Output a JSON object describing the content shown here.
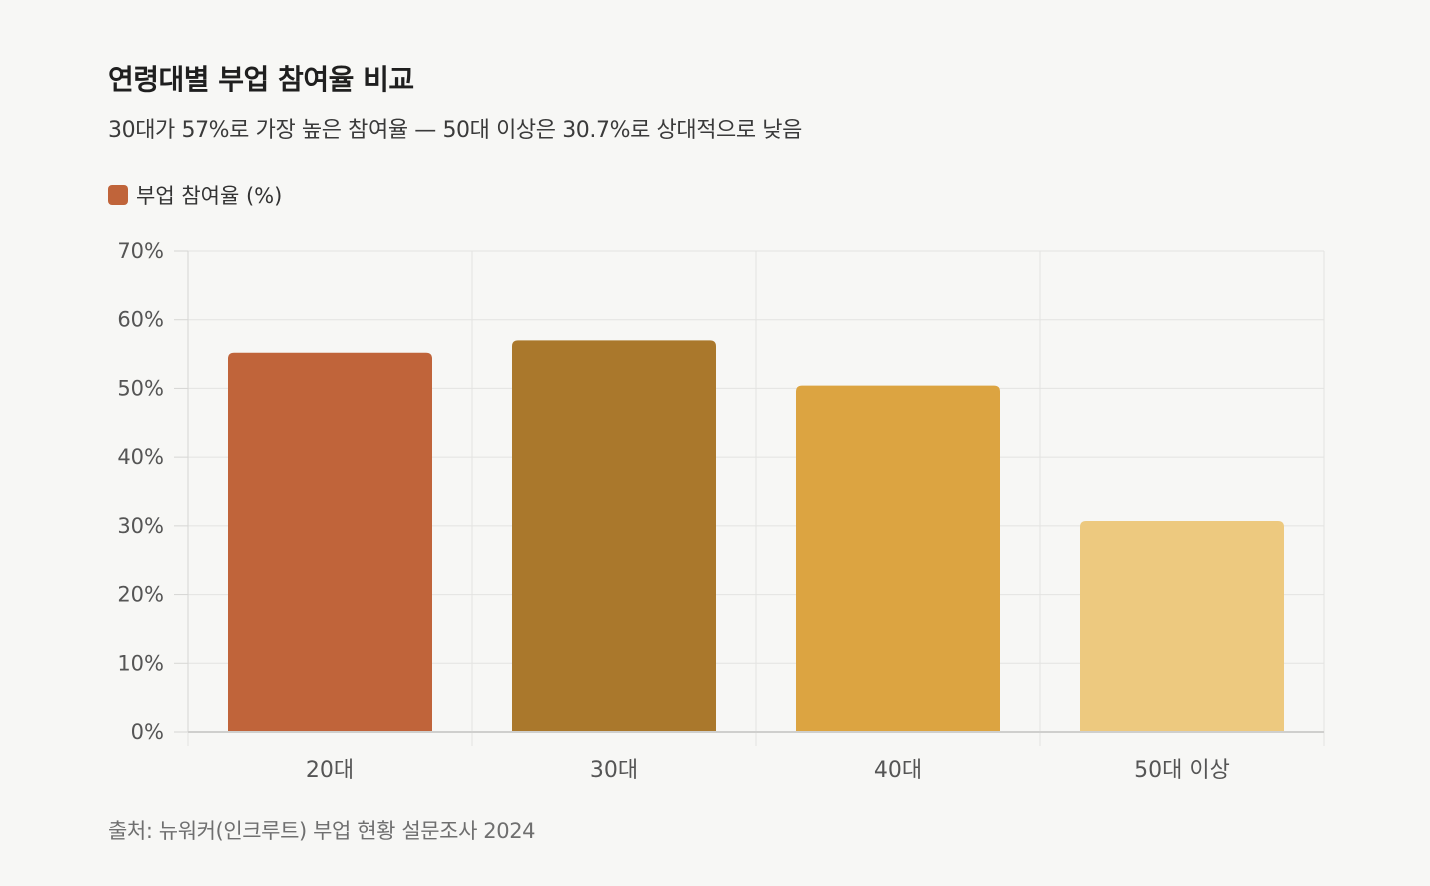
{
  "chart_data": {
    "type": "bar",
    "title": "연령대별 부업 참여율 비교",
    "subtitle": "30대가 57%로 가장 높은 참여율 — 50대 이상은 30.7%로 상대적으로 낮음",
    "categories": [
      "20대",
      "30대",
      "40대",
      "50대 이상"
    ],
    "series": [
      {
        "name": "부업 참여율 (%)",
        "values": [
          55.2,
          57.0,
          50.4,
          30.7
        ]
      }
    ],
    "bar_colors": [
      "#c0643a",
      "#aa782c",
      "#dca441",
      "#edc97f"
    ],
    "legend_color": "#c0643a",
    "ylim": [
      0,
      70
    ],
    "yticks": [
      0,
      10,
      20,
      30,
      40,
      50,
      60,
      70
    ],
    "ytick_labels": [
      "0%",
      "10%",
      "20%",
      "30%",
      "40%",
      "50%",
      "60%",
      "70%"
    ],
    "grid": true,
    "legend_position": "top-left",
    "source": "출처: 뉴워커(인크루트) 부업 현황 설문조사 2024"
  }
}
